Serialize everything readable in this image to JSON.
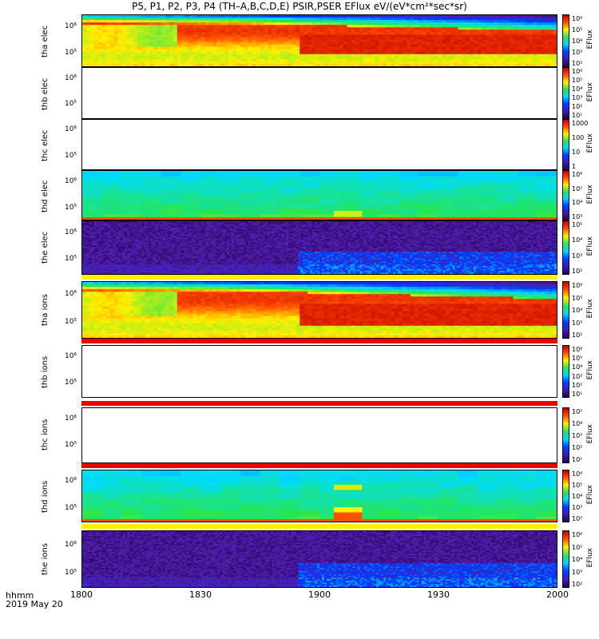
{
  "title": "P5, P1, P2, P3, P4 (TH–A,B,C,D,E) PSIR,PSER EFlux eV/(eV*cm²*sec*sr)",
  "panels": [
    {
      "label1": "tha",
      "label2": "elec",
      "yticks": [
        "10⁶",
        "10⁵"
      ],
      "cbticks": [
        "10⁶",
        "10⁵",
        "10⁴",
        "10³",
        "10²"
      ],
      "cblabel": "EFlux",
      "fill": "tha"
    },
    {
      "label1": "thb",
      "label2": "elec",
      "yticks": [
        "10⁶",
        "10⁵"
      ],
      "cbticks": [
        "10⁶",
        "10⁵",
        "10⁴",
        "10³",
        "10²",
        "10¹"
      ],
      "cblabel": "EFlux",
      "fill": "empty"
    },
    {
      "label1": "thc",
      "label2": "elec",
      "yticks": [
        "10⁶",
        "10⁵"
      ],
      "cbticks": [
        "1000",
        "100",
        "10",
        "1"
      ],
      "cblabel": "EFlux",
      "fill": "empty"
    },
    {
      "label1": "thd",
      "label2": "elec",
      "yticks": [
        "10⁶",
        "10⁵"
      ],
      "cbticks": [
        "10⁶",
        "10⁵",
        "10⁴",
        "10³"
      ],
      "cblabel": "EFlux",
      "fill": "thd"
    },
    {
      "label1": "the",
      "label2": "elec",
      "yticks": [
        "10⁶",
        "10⁵"
      ],
      "cbticks": [
        "10⁵",
        "10⁴",
        "10³",
        "10²"
      ],
      "cblabel": "EFlux",
      "fill": "the"
    },
    {
      "label1": "tha",
      "label2": "ions",
      "yticks": [
        "10⁶",
        "10⁵"
      ],
      "cbticks": [
        "10⁶",
        "10⁵",
        "10⁴",
        "10³",
        "10²"
      ],
      "cblabel": "EFlux",
      "fill": "tha"
    },
    {
      "label1": "thb",
      "label2": "ions",
      "yticks": [
        "10⁶",
        "10⁵"
      ],
      "cbticks": [
        "10⁶",
        "10⁵",
        "10⁴",
        "10³",
        "10²",
        "10¹"
      ],
      "cblabel": "EFlux",
      "fill": "empty"
    },
    {
      "label1": "thc",
      "label2": "ions",
      "yticks": [
        "10⁶",
        "10⁵"
      ],
      "cbticks": [
        "10⁵",
        "10⁴",
        "10³",
        "10²",
        "10¹"
      ],
      "cblabel": "EFlux",
      "fill": "empty"
    },
    {
      "label1": "thd",
      "label2": "ions",
      "yticks": [
        "10⁶",
        "10⁵"
      ],
      "cbticks": [
        "10⁶",
        "10⁵",
        "10⁴",
        "10³",
        "10²"
      ],
      "cblabel": "EFlux",
      "fill": "thd"
    },
    {
      "label1": "the",
      "label2": "ions",
      "yticks": [
        "10⁶",
        "10⁵"
      ],
      "cbticks": [
        "10⁶",
        "10⁵",
        "10⁴",
        "10³",
        "10²"
      ],
      "cblabel": "EFlux",
      "fill": "the"
    }
  ],
  "xticks": [
    "1800",
    "1830",
    "1900",
    "1930",
    "2000"
  ],
  "footer": {
    "line1": "hhmm",
    "line2": "2019 May 20"
  },
  "colors": {
    "red": "#f20000",
    "yellow": "#ffee00",
    "cyan": "#22c8ff",
    "green": "#30e060",
    "purple": "#5a1ea0"
  },
  "chart_data": {
    "type": "heatmap",
    "title": "P5, P1, P2, P3, P4 (TH–A,B,C,D,E) PSIR,PSER EFlux eV/(eV*cm²*sec*sr)",
    "xlabel": "hhmm",
    "x_ticks": [
      "1800",
      "1830",
      "1900",
      "1930",
      "2000"
    ],
    "date": "2019 May 20",
    "ylabel_scale": "log",
    "colorbar_label": "EFlux",
    "series": [
      {
        "name": "tha elec",
        "y_ticks": [
          "10⁶",
          "10⁵"
        ]
      },
      {
        "name": "thb elec",
        "y_ticks": [
          "10⁶",
          "10⁵"
        ]
      },
      {
        "name": "thc elec",
        "y_ticks": [
          "10⁶",
          "10⁵"
        ]
      },
      {
        "name": "thd elec",
        "y_ticks": [
          "10⁶",
          "10⁵"
        ]
      },
      {
        "name": "the elec",
        "y_ticks": [
          "10⁶",
          "10⁵"
        ]
      },
      {
        "name": "tha ions",
        "y_ticks": [
          "10⁶",
          "10⁵"
        ]
      },
      {
        "name": "thb ions",
        "y_ticks": [
          "10⁶",
          "10⁵"
        ]
      },
      {
        "name": "thc ions",
        "y_ticks": [
          "10⁶",
          "10⁵"
        ]
      },
      {
        "name": "thd ions",
        "y_ticks": [
          "10⁶",
          "10⁵"
        ]
      },
      {
        "name": "the ions",
        "y_ticks": [
          "10⁶",
          "10⁵"
        ]
      }
    ]
  }
}
